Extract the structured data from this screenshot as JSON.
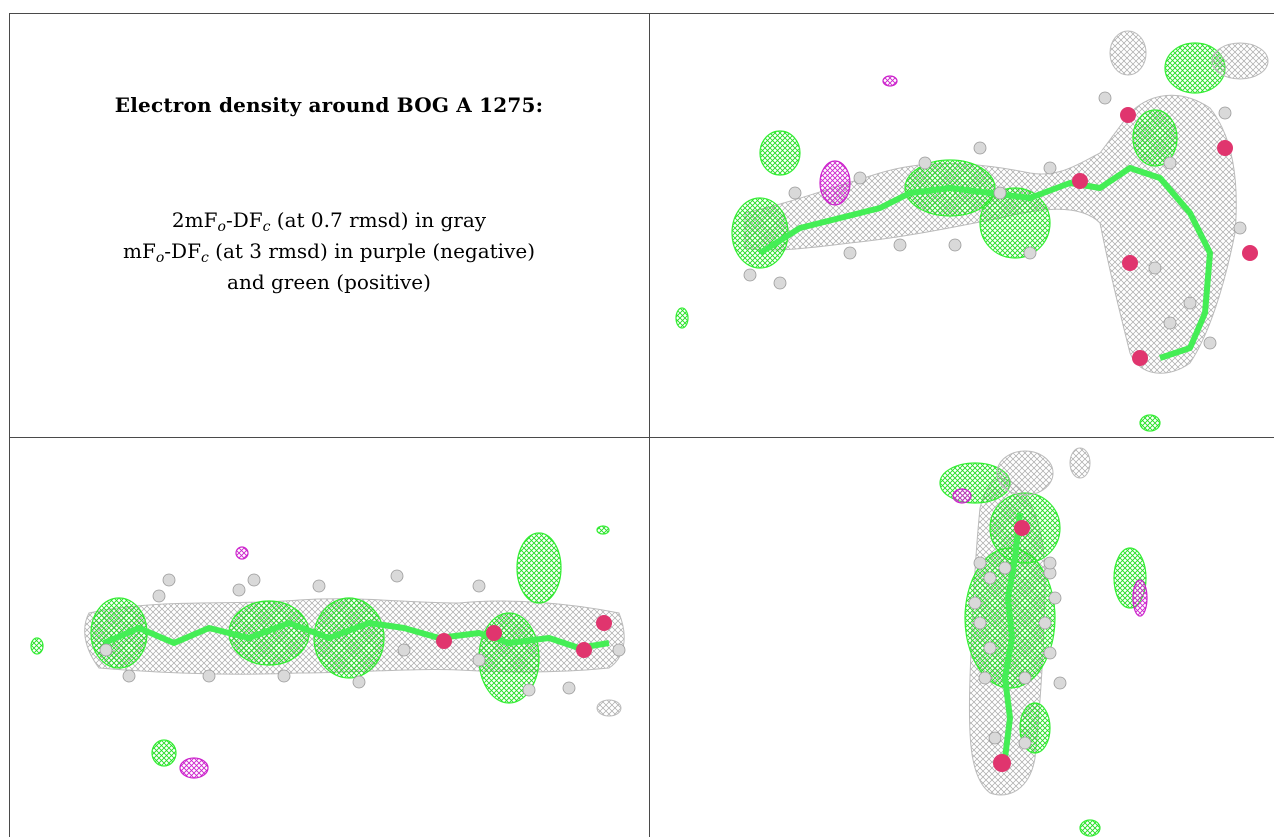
{
  "caption": {
    "title": "Electron density around BOG A 1275:",
    "line1": {
      "a": "2mF",
      "a_sub": "o",
      "b": "-DF",
      "b_sub": "c",
      "rest": " (at 0.7 rmsd) in gray"
    },
    "line2": {
      "a": "mF",
      "a_sub": "o",
      "b": "-DF",
      "b_sub": "c",
      "rest": " (at 3 rmsd) in purple (negative)"
    },
    "line3": "and green (positive)"
  },
  "colors": {
    "density_2fofc": "#b8b8b8",
    "difference_positive": "#33ee33",
    "difference_negative": "#cc22cc",
    "oxygen": "#e0356e",
    "hydrogen": "#d9d9d9",
    "carbon": "#44ee55",
    "grid_line": "#4a4a4a"
  },
  "views": [
    {
      "name": "view-top-right"
    },
    {
      "name": "view-bottom-left"
    },
    {
      "name": "view-bottom-right"
    }
  ]
}
